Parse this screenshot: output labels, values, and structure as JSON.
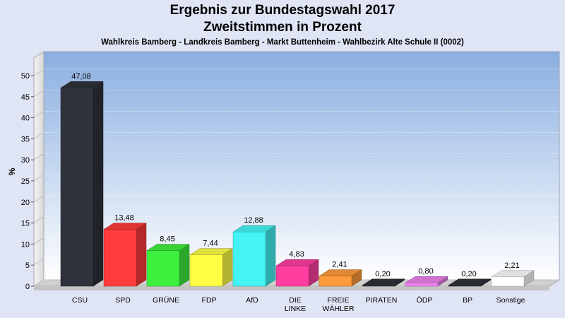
{
  "chart_data": {
    "type": "bar",
    "title": "Ergebnis zur Bundestagswahl 2017",
    "subtitle": "Zweitstimmen in Prozent",
    "caption": "Wahlkreis Bamberg - Landkreis Bamberg - Markt Buttenheim - Wahlbezirk Alte Schule II (0002)",
    "ylabel": "%",
    "ylim": [
      0,
      50
    ],
    "yticks": [
      "0",
      "5",
      "10",
      "15",
      "20",
      "25",
      "30",
      "35",
      "40",
      "45",
      "50"
    ],
    "categories": [
      {
        "label": [
          "CSU"
        ],
        "value": 47.08,
        "display": "47,08",
        "color": "#2f323a"
      },
      {
        "label": [
          "SPD"
        ],
        "value": 13.48,
        "display": "13,48",
        "color": "#ff3b3b"
      },
      {
        "label": [
          "GRÜNE"
        ],
        "value": 8.45,
        "display": "8,45",
        "color": "#3ef03e"
      },
      {
        "label": [
          "FDP"
        ],
        "value": 7.44,
        "display": "7,44",
        "color": "#ffff44"
      },
      {
        "label": [
          "AfD"
        ],
        "value": 12.88,
        "display": "12,88",
        "color": "#44f4f4"
      },
      {
        "label": [
          "DIE",
          "LINKE"
        ],
        "value": 4.83,
        "display": "4,83",
        "color": "#ff3ea0"
      },
      {
        "label": [
          "FREIE",
          "WÄHLER"
        ],
        "value": 2.41,
        "display": "2,41",
        "color": "#ff9a3a"
      },
      {
        "label": [
          "PIRATEN"
        ],
        "value": 0.2,
        "display": "0,20",
        "color": "#2f323a"
      },
      {
        "label": [
          "ÖDP"
        ],
        "value": 0.8,
        "display": "0,80",
        "color": "#ee82ee"
      },
      {
        "label": [
          "BP"
        ],
        "value": 0.2,
        "display": "0,20",
        "color": "#2f323a"
      },
      {
        "label": [
          "Sonstige"
        ],
        "value": 2.21,
        "display": "2,21",
        "color": "#ffffff"
      }
    ],
    "grid": true,
    "legend": "none"
  }
}
